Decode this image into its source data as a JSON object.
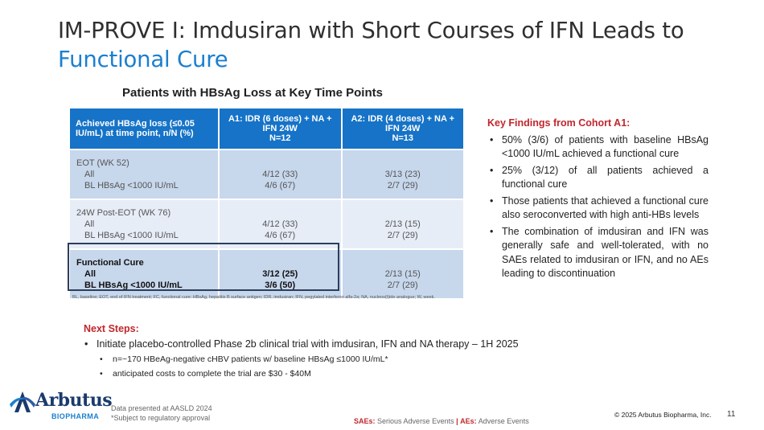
{
  "title": {
    "line1": "IM-PROVE I: Imdusiran with Short Courses of IFN Leads to",
    "accent": "Functional Cure"
  },
  "table": {
    "title": "Patients with HBsAg Loss at Key Time Points",
    "headers": {
      "c1": "Achieved HBsAg loss (≤0.05 IU/mL) at time point, n/N (%)",
      "c2_l1": "A1: IDR (6 doses) + NA +",
      "c2_l2": "IFN 24W",
      "c2_l3": "N=12",
      "c3_l1": "A2: IDR (4 doses) + NA +",
      "c3_l2": "IFN 24W",
      "c3_l3": "N=13"
    },
    "rows": [
      {
        "label": "EOT (WK 52)",
        "sub1": "All",
        "sub2": "BL HBsAg <1000 IU/mL",
        "a1_1": "4/12 (33)",
        "a1_2": "4/6 (67)",
        "a2_1": "3/13 (23)",
        "a2_2": "2/7 (29)"
      },
      {
        "label": "24W Post-EOT (WK 76)",
        "sub1": "All",
        "sub2": "BL HBsAg <1000 IU/mL",
        "a1_1": "4/12 (33)",
        "a1_2": "4/6 (67)",
        "a2_1": "2/13 (15)",
        "a2_2": "2/7 (29)"
      },
      {
        "label": "Functional Cure",
        "sub1": "All",
        "sub2": "BL HBsAg <1000 IU/mL",
        "a1_1": "3/12 (25)",
        "a1_2": "3/6 (50)",
        "a2_1": "2/13 (15)",
        "a2_2": "2/7 (29)"
      }
    ],
    "footnote": "BL, baseline; EOT, end of IFN treatment; FC, functional cure: HBsAg, hepatitis B surface antigen; IDR, imdusiran; IFN, pegylated interferon alfa-2a; NA, nucleos(t)ide analogue; W, week."
  },
  "key_findings": {
    "title": "Key Findings from Cohort A1:",
    "bullet": "•",
    "items": [
      "50% (3/6) of patients with baseline HBsAg <1000 IU/mL achieved a functional cure",
      "25% (3/12) of all patients achieved a functional cure",
      "Those patients that achieved a functional cure also seroconverted with high anti-HBs levels",
      "The combination of imdusiran and IFN was generally safe and well-tolerated, with no SAEs related to imdusiran or IFN, and no AEs leading to discontinuation"
    ]
  },
  "next_steps": {
    "title": "Next Steps:",
    "main": "Initiate placebo-controlled Phase 2b clinical trial with imdusiran, IFN and NA therapy – 1H 2025",
    "subs": [
      "n=~170 HBeAg-negative cHBV patients w/ baseline HBsAg ≤1000 IU/mL*",
      "anticipated costs to complete the trial are $30 - $40M"
    ]
  },
  "footer": {
    "logo_word": "Arbutus",
    "logo_sub": "BIOPHARMA",
    "source1": "Data presented at AASLD 2024",
    "source2": "*Subject to regulatory approval",
    "sae_abbr": "SAEs:",
    "sae_text": "Serious Adverse Events",
    "sep": "|",
    "ae_abbr": "AEs:",
    "ae_text": "Adverse Events",
    "copyright": "© 2025 Arbutus Biopharma, Inc.",
    "page": "11"
  },
  "colors": {
    "accent_blue": "#1a7fcf",
    "header_blue": "#1673c7",
    "red": "#c0272d",
    "navy": "#1a3a6e"
  }
}
